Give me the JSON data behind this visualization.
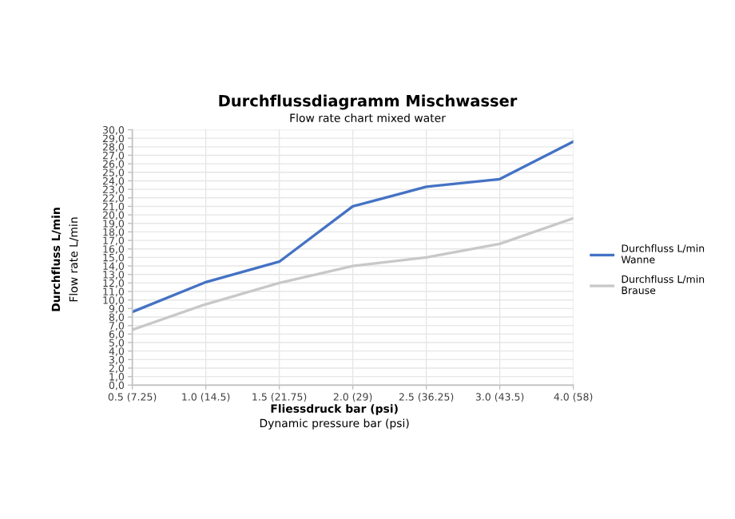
{
  "chart_data": {
    "type": "line",
    "title": "Durchflussdiagramm Mischwasser",
    "subtitle": "Flow rate chart mixed water",
    "xlabel": "Fliessdruck bar (psi)\nDynamic pressure bar (psi)",
    "ylabel": "Durchfluss L/min\nFlow rate L/min",
    "categories": [
      "0.5 (7.25)",
      "1.0 (14.5)",
      "1.5 (21.75)",
      "2.0 (29)",
      "2.5 (36.25)",
      "3.0 (43.5)",
      "4.0 (58)"
    ],
    "series": [
      {
        "name": "Durchfluss L/min\nWanne",
        "color": "#4472c4",
        "values": [
          8.6,
          12.1,
          14.5,
          21.0,
          23.3,
          24.2,
          28.6
        ]
      },
      {
        "name": "Durchfluss L/min\nBrause",
        "color": "#c8c8c8",
        "values": [
          6.5,
          9.5,
          12.0,
          14.0,
          15.0,
          16.6,
          19.6
        ]
      }
    ],
    "ylim": [
      0,
      30
    ],
    "yticks": [
      {
        "value": 0,
        "label": "0,0"
      },
      {
        "value": 1,
        "label": "1,0"
      },
      {
        "value": 2,
        "label": "2,0"
      },
      {
        "value": 3,
        "label": "3,0"
      },
      {
        "value": 4,
        "label": "4,0"
      },
      {
        "value": 5,
        "label": "5,0"
      },
      {
        "value": 6,
        "label": "6,0"
      },
      {
        "value": 7,
        "label": "7,0"
      },
      {
        "value": 8,
        "label": "8,0"
      },
      {
        "value": 9,
        "label": "9,0"
      },
      {
        "value": 10,
        "label": "10,0"
      },
      {
        "value": 11,
        "label": "11,0"
      },
      {
        "value": 12,
        "label": "12,0"
      },
      {
        "value": 13,
        "label": "13,0"
      },
      {
        "value": 14,
        "label": "14,0"
      },
      {
        "value": 15,
        "label": "15,0"
      },
      {
        "value": 16,
        "label": "16,0"
      },
      {
        "value": 17,
        "label": "17,0"
      },
      {
        "value": 18,
        "label": "18,0"
      },
      {
        "value": 19,
        "label": "19,0"
      },
      {
        "value": 20,
        "label": "20,0"
      },
      {
        "value": 21,
        "label": "21,0"
      },
      {
        "value": 22,
        "label": "22,0"
      },
      {
        "value": 23,
        "label": "23,0"
      },
      {
        "value": 24,
        "label": "24,0"
      },
      {
        "value": 25,
        "label": "25,0"
      },
      {
        "value": 26,
        "label": "26,0"
      },
      {
        "value": 27,
        "label": "27,0"
      },
      {
        "value": 28,
        "label": "28,0"
      },
      {
        "value": 29,
        "label": "29,0"
      },
      {
        "value": 30,
        "label": "30,0"
      }
    ],
    "grid": true,
    "legend": "right",
    "marker": "none",
    "line_style": "solid"
  }
}
